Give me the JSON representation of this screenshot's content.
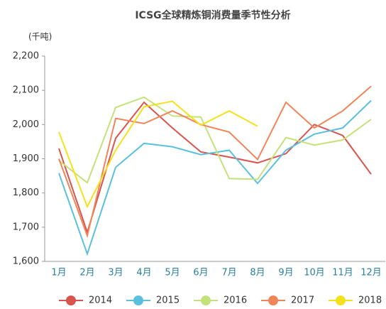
{
  "chart_data": {
    "type": "line",
    "title": "ICSG全球精炼铜消费量季节性分析",
    "y_label": "(千吨)",
    "categories": [
      "1月",
      "2月",
      "3月",
      "4月",
      "5月",
      "6月",
      "7月",
      "8月",
      "9月",
      "10月",
      "11月",
      "12月"
    ],
    "series": [
      {
        "name": "2014",
        "color": "#d9534f",
        "values": [
          1930,
          1685,
          1960,
          2065,
          1990,
          1920,
          1905,
          1888,
          1915,
          2000,
          1968,
          1855
        ]
      },
      {
        "name": "2015",
        "color": "#5bc0de",
        "values": [
          1858,
          1622,
          1875,
          1945,
          1935,
          1912,
          1925,
          1828,
          1925,
          1972,
          1990,
          2070
        ]
      },
      {
        "name": "2016",
        "color": "#c5e17a",
        "values": [
          1895,
          1830,
          2050,
          2080,
          2025,
          2022,
          1842,
          1840,
          1962,
          1940,
          1955,
          2015
        ]
      },
      {
        "name": "2017",
        "color": "#f0855a",
        "values": [
          1900,
          1675,
          2018,
          2003,
          2040,
          2000,
          1978,
          1898,
          2065,
          1990,
          2040,
          2112
        ]
      },
      {
        "name": "2018",
        "color": "#f5e11a",
        "values": [
          1978,
          1760,
          1925,
          2052,
          2068,
          1998,
          2040,
          1995,
          null,
          null,
          null,
          null
        ]
      }
    ],
    "ylim": [
      1600,
      2200
    ],
    "yticks": [
      {
        "value": 1600,
        "label": "1,600"
      },
      {
        "value": 1700,
        "label": "1,700"
      },
      {
        "value": 1800,
        "label": "1,800"
      },
      {
        "value": 1900,
        "label": "1,900"
      },
      {
        "value": 2000,
        "label": "2,000"
      },
      {
        "value": 2100,
        "label": "2,100"
      },
      {
        "value": 2200,
        "label": "2,200"
      }
    ],
    "legend": "bottom"
  }
}
